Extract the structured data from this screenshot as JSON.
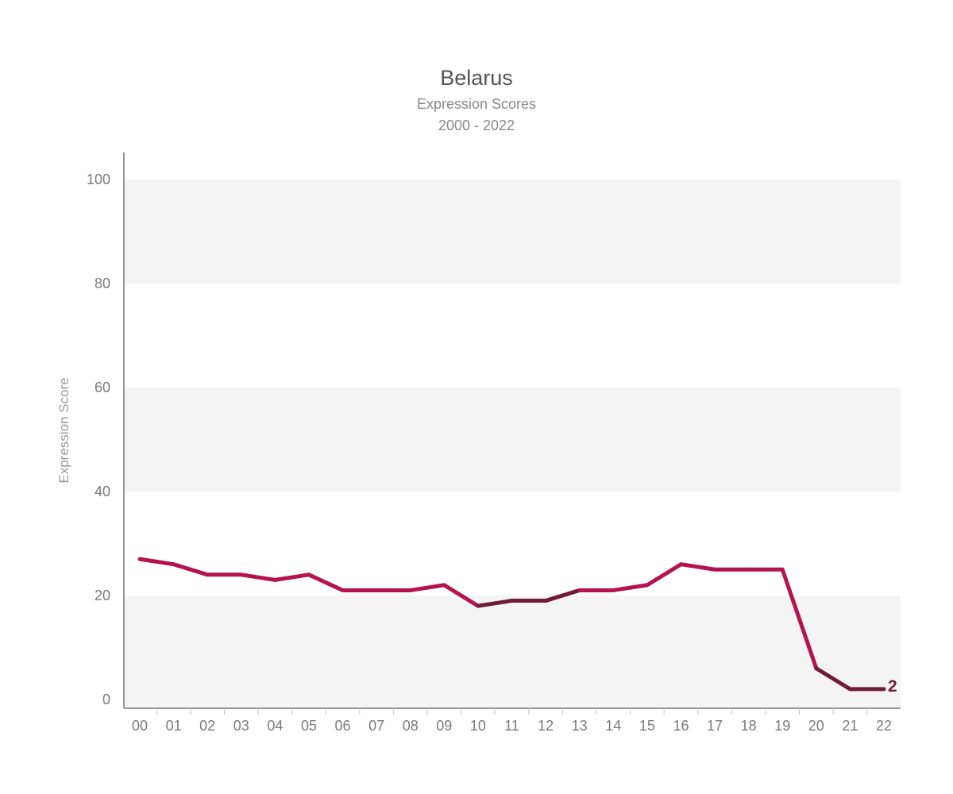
{
  "chart_data": {
    "type": "line",
    "title": "Belarus",
    "subtitle": "Expression Scores",
    "date_range": "2000 - 2022",
    "xlabel": "",
    "ylabel": "Expression Score",
    "categories": [
      "00",
      "01",
      "02",
      "03",
      "04",
      "05",
      "06",
      "07",
      "08",
      "09",
      "10",
      "11",
      "12",
      "13",
      "14",
      "15",
      "16",
      "17",
      "18",
      "19",
      "20",
      "21",
      "22"
    ],
    "yticks": [
      0,
      20,
      40,
      60,
      80,
      100
    ],
    "ylim": [
      0,
      100
    ],
    "series": [
      {
        "values": [
          27,
          26,
          24,
          24,
          23,
          24,
          21,
          21,
          21,
          22,
          18,
          19,
          19,
          21,
          21,
          22,
          26,
          25,
          25,
          25,
          6,
          2,
          2
        ],
        "status": [
          "free",
          "free",
          "free",
          "free",
          "free",
          "free",
          "free",
          "free",
          "free",
          "free",
          "not-free",
          "not-free",
          "not-free",
          "free",
          "free",
          "free",
          "free",
          "free",
          "free",
          "free",
          "not-free",
          "not-free",
          "not-free"
        ]
      }
    ],
    "end_label": "2",
    "grid": "alternating horizontal bands",
    "colors": {
      "line_primary": "#b5124e",
      "line_secondary": "#6f1a37",
      "band": "#f4f4f4",
      "axis": "#999999"
    }
  }
}
